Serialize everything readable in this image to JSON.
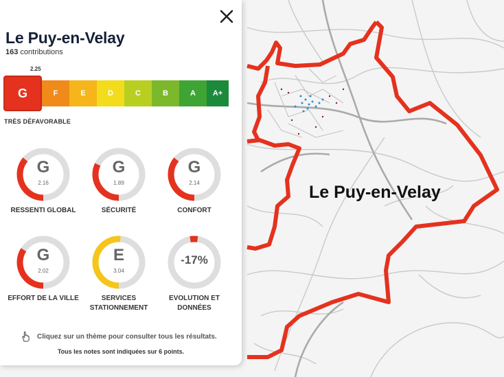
{
  "panel": {
    "title": "Le Puy-en-Velay",
    "contributions_count": "163",
    "contributions_label": "contributions",
    "overall_score": "2.25",
    "overall_grade": "G",
    "overall_label": "TRÈS DÉFAVORABLE",
    "scale": [
      "G",
      "F",
      "E",
      "D",
      "C",
      "B",
      "A",
      "A+"
    ],
    "scale_colors": [
      "#e4321f",
      "#f08a1a",
      "#f5b51b",
      "#f3dc1c",
      "#b8cf22",
      "#7bb82b",
      "#40a435",
      "#1b8a3b"
    ],
    "themes": [
      {
        "grade": "G",
        "score": "2.16",
        "label": "RESSENTI GLOBAL",
        "color": "#e4321f",
        "fill": 0.36
      },
      {
        "grade": "G",
        "score": "1.89",
        "label": "SÉCURITÉ",
        "color": "#e4321f",
        "fill": 0.32
      },
      {
        "grade": "G",
        "score": "2.14",
        "label": "CONFORT",
        "color": "#e4321f",
        "fill": 0.36
      },
      {
        "grade": "G",
        "score": "2.02",
        "label": "EFFORT DE LA VILLE",
        "color": "#e4321f",
        "fill": 0.34
      },
      {
        "grade": "E",
        "score": "3.04",
        "label": "SERVICES STATIONNEMENT",
        "color": "#f5c51b",
        "fill": 0.51
      },
      {
        "pct": "-17%",
        "label": "EVOLUTION ET DONNÉES",
        "color": "#e4321f",
        "fill": 0.05
      }
    ],
    "hint": "Cliquez sur un thème pour consulter tous les résultats.",
    "note": "Tous les notes sont indiquées sur 6 points."
  },
  "map": {
    "city_label": "Le Puy-en-Velay",
    "boundary_color": "#e4321f"
  },
  "icons": {
    "close": "close-icon",
    "hand": "hand-pointer-icon"
  }
}
